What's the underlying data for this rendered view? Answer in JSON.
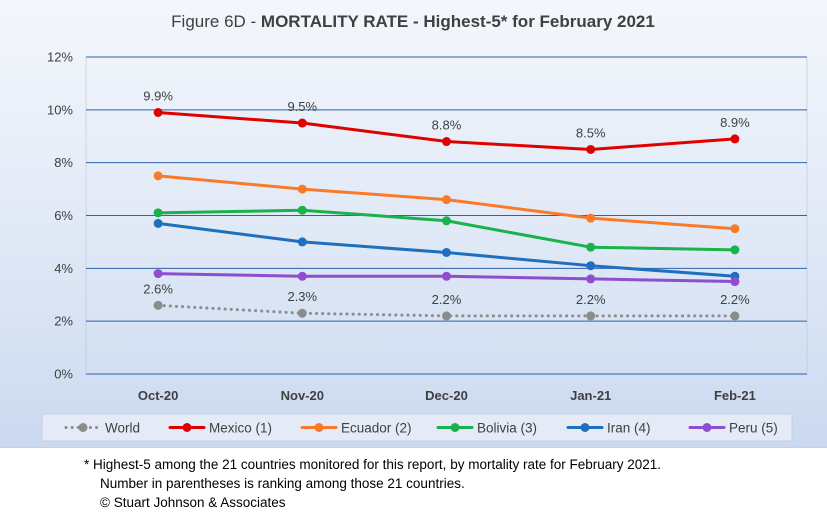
{
  "chart_data": {
    "type": "line",
    "title_prefix": "Figure 6D  - ",
    "title_main": "MORTALITY RATE - Highest-5* for February 2021",
    "categories": [
      "Oct-20",
      "Nov-20",
      "Dec-20",
      "Jan-21",
      "Feb-21"
    ],
    "ylim": [
      0,
      12
    ],
    "yticks": [
      "0%",
      "2%",
      "4%",
      "6%",
      "8%",
      "10%",
      "12%"
    ],
    "grid": true,
    "legend_position": "bottom",
    "series": [
      {
        "name": "World",
        "color": "#8c8c8c",
        "dashed": true,
        "values": [
          2.6,
          2.3,
          2.2,
          2.2,
          2.2
        ],
        "labels": [
          "2.6%",
          "2.3%",
          "2.2%",
          "2.2%",
          "2.2%"
        ]
      },
      {
        "name": "Mexico (1)",
        "color": "#e00000",
        "dashed": false,
        "values": [
          9.9,
          9.5,
          8.8,
          8.5,
          8.9
        ],
        "labels": [
          "9.9%",
          "9.5%",
          "8.8%",
          "8.5%",
          "8.9%"
        ]
      },
      {
        "name": "Ecuador (2)",
        "color": "#fb7a2a",
        "dashed": false,
        "values": [
          7.5,
          7.0,
          6.6,
          5.9,
          5.5
        ]
      },
      {
        "name": "Bolivia (3)",
        "color": "#19b24b",
        "dashed": false,
        "values": [
          6.1,
          6.2,
          5.8,
          4.8,
          4.7
        ]
      },
      {
        "name": "Iran (4)",
        "color": "#1f6fbd",
        "dashed": false,
        "values": [
          5.7,
          5.0,
          4.6,
          4.1,
          3.7
        ]
      },
      {
        "name": "Peru (5)",
        "color": "#8e4fce",
        "dashed": false,
        "values": [
          3.8,
          3.7,
          3.7,
          3.6,
          3.5
        ]
      }
    ]
  },
  "footnote": {
    "line1": "* Highest-5 among the 21 countries monitored for this report, by mortality rate for February 2021.",
    "line2": "Number in parentheses is ranking among those 21 countries.",
    "line3": "© Stuart Johnson & Associates"
  }
}
